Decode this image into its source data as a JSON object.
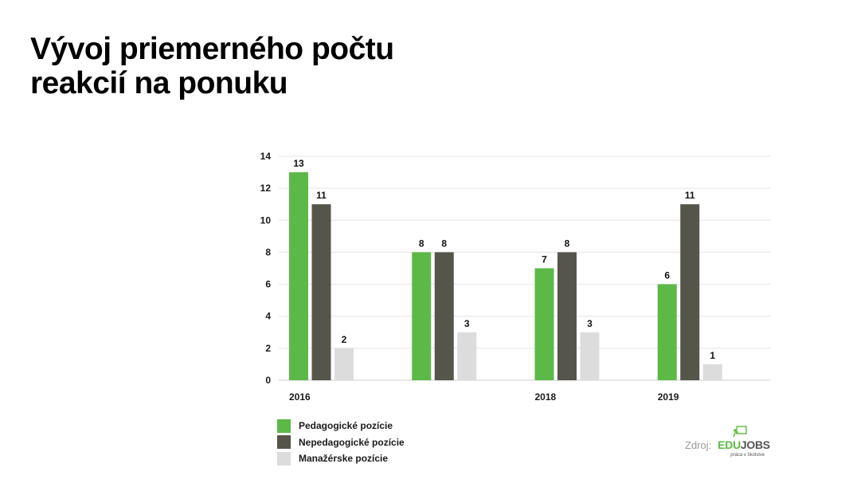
{
  "title": {
    "line1": "Vývoj priemerného počtu",
    "line2": "reakcií na ponuku"
  },
  "chart_data": {
    "type": "bar",
    "categories": [
      "2016",
      "",
      "2018",
      "2019"
    ],
    "series": [
      {
        "name": "Pedagogické pozície",
        "values": [
          13,
          8,
          7,
          6
        ],
        "color": "#5cb947"
      },
      {
        "name": "Nepedagogické pozície",
        "values": [
          11,
          8,
          8,
          11
        ],
        "color": "#55554b"
      },
      {
        "name": "Manažérske pozície",
        "values": [
          2,
          3,
          3,
          1
        ],
        "color": "#dcdcdc"
      }
    ],
    "ylim": [
      0,
      14
    ],
    "yticks": [
      0,
      2,
      4,
      6,
      8,
      10,
      12,
      14
    ],
    "grid": true,
    "legend_position": "bottom-left"
  },
  "legend": [
    {
      "label": "Pedagogické pozície",
      "color": "#5cb947"
    },
    {
      "label": "Nepedagogické pozície",
      "color": "#55554b"
    },
    {
      "label": "Manažérske pozície",
      "color": "#dcdcdc"
    }
  ],
  "source": {
    "label": "Zdroj:",
    "logo_edu": "EDU",
    "logo_jobs": "JOBS",
    "logo_tagline": "práca v školstve",
    "logo_icon": "person-at-board-icon"
  }
}
